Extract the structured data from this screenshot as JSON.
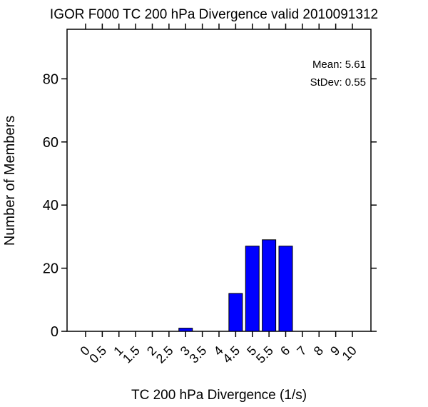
{
  "chart_data": {
    "type": "bar",
    "title": "IGOR F000 TC 200 hPa Divergence valid 2010091312",
    "xlabel": "TC 200 hPa Divergence (1/s)",
    "ylabel": "Number of Members",
    "categories": [
      "0",
      "0.5",
      "1",
      "1.5",
      "2",
      "2.5",
      "3",
      "3.5",
      "4",
      "4.5",
      "5",
      "5.5",
      "6",
      "7",
      "8",
      "9",
      "10"
    ],
    "values": [
      0,
      0,
      0,
      0,
      0,
      0,
      1,
      0,
      0,
      12,
      27,
      29,
      27,
      0,
      0,
      0,
      0
    ],
    "yticks": [
      0,
      20,
      40,
      60,
      80
    ],
    "ylim": [
      0,
      96
    ],
    "bar_color": "#0000ff",
    "stats": {
      "mean": "Mean: 5.61",
      "stdev": "StDev: 0.55"
    },
    "grid": false,
    "legend": "none"
  }
}
